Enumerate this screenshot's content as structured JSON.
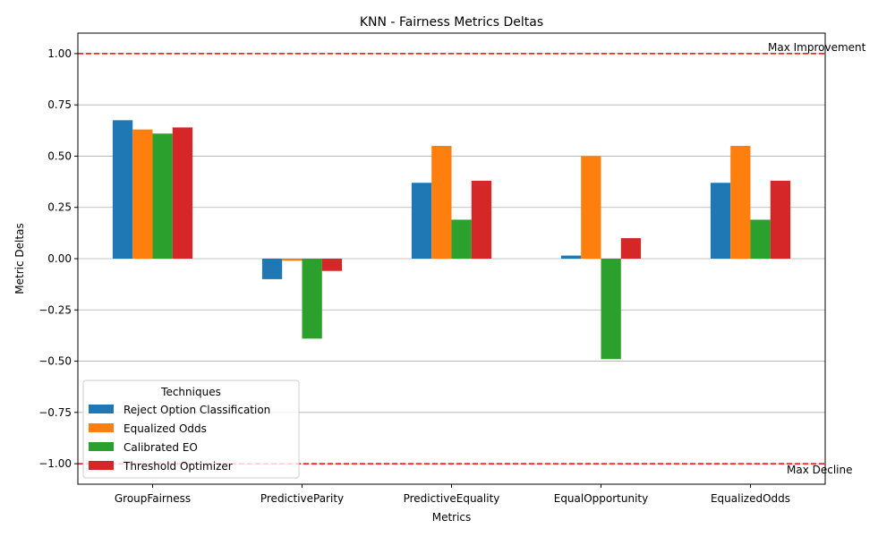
{
  "chart_data": {
    "type": "bar",
    "title": "KNN - Fairness Metrics Deltas",
    "xlabel": "Metrics",
    "ylabel": "Metric Deltas",
    "ylim": [
      -1.1,
      1.1
    ],
    "yticks": [
      "−1.00",
      "−0.75",
      "−0.50",
      "−0.25",
      "0.00",
      "0.25",
      "0.50",
      "0.75",
      "1.00"
    ],
    "ytick_values": [
      -1.0,
      -0.75,
      -0.5,
      -0.25,
      0.0,
      0.25,
      0.5,
      0.75,
      1.0
    ],
    "grid": "horizontal",
    "categories": [
      "GroupFairness",
      "PredictiveParity",
      "PredictiveEquality",
      "EqualOpportunity",
      "EqualizedOdds"
    ],
    "series": [
      {
        "name": "Reject Option Classification",
        "color": "#1f77b4",
        "values": [
          0.675,
          -0.1,
          0.37,
          0.015,
          0.37
        ]
      },
      {
        "name": "Equalized Odds",
        "color": "#ff7f0e",
        "values": [
          0.63,
          -0.01,
          0.55,
          0.5,
          0.55
        ]
      },
      {
        "name": "Calibrated EO",
        "color": "#2ca02c",
        "values": [
          0.61,
          -0.39,
          0.19,
          -0.49,
          0.19
        ]
      },
      {
        "name": "Threshold Optimizer",
        "color": "#d62728",
        "values": [
          0.64,
          -0.06,
          0.38,
          0.1,
          0.38
        ]
      }
    ],
    "legend": {
      "title": "Techniques",
      "placement": "lower-left"
    },
    "reference_lines": [
      {
        "value": 1.0,
        "label": "Max Improvement",
        "color": "#ff0000"
      },
      {
        "value": -1.0,
        "label": "Max Decline",
        "color": "#ff0000"
      }
    ]
  }
}
